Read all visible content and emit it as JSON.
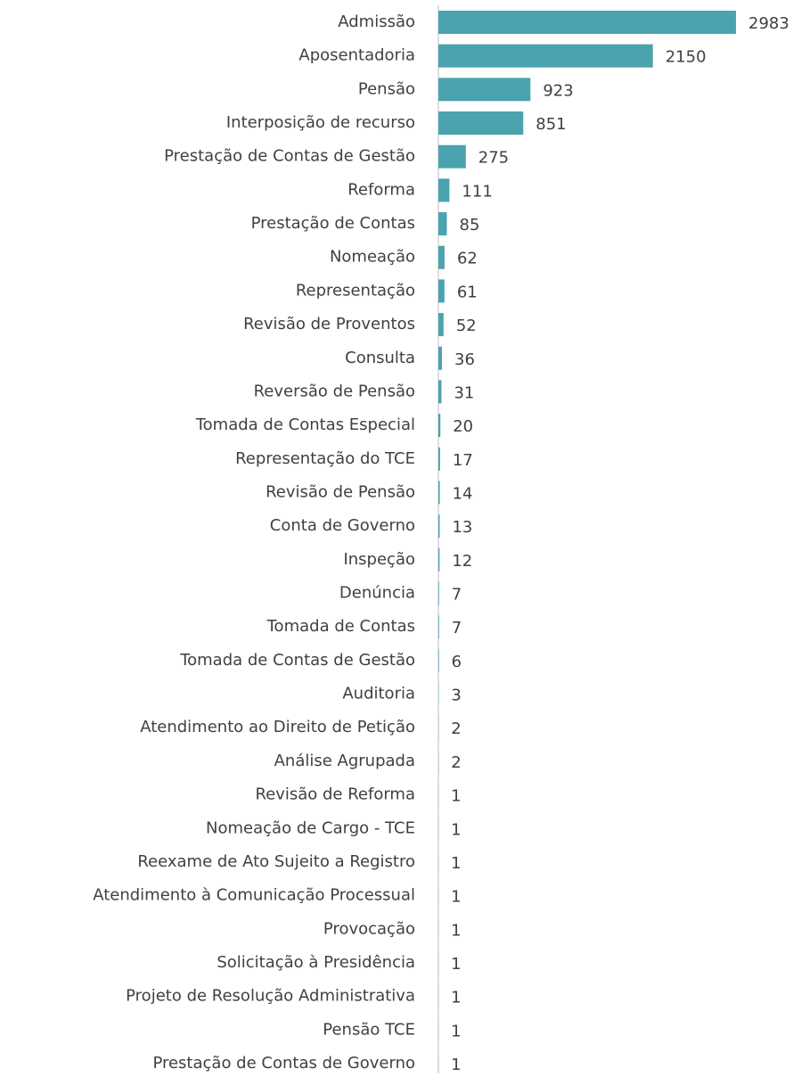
{
  "chart_data": {
    "type": "bar",
    "orientation": "horizontal",
    "color": "#4aa3ae",
    "categories": [
      "Admissão",
      "Aposentadoria",
      "Pensão",
      "Interposição de recurso",
      "Prestação de Contas de Gestão",
      "Reforma",
      "Prestação de Contas",
      "Nomeação",
      "Representação",
      "Revisão de Proventos",
      "Consulta",
      "Reversão de Pensão",
      "Tomada de Contas Especial",
      "Representação do TCE",
      "Revisão de Pensão",
      "Conta de Governo",
      "Inspeção",
      "Denúncia",
      "Tomada de Contas",
      "Tomada de Contas de Gestão",
      "Auditoria",
      "Atendimento ao Direito de Petição",
      "Análise Agrupada",
      "Revisão de Reforma",
      "Nomeação de Cargo - TCE",
      "Reexame de Ato Sujeito a Registro",
      "Atendimento à Comunicação Processual",
      "Provocação",
      "Solicitação à Presidência",
      "Projeto de Resolução Administrativa",
      "Pensão TCE",
      "Prestação de Contas de Governo"
    ],
    "values": [
      2983,
      2150,
      923,
      851,
      275,
      111,
      85,
      62,
      61,
      52,
      36,
      31,
      20,
      17,
      14,
      13,
      12,
      7,
      7,
      6,
      3,
      2,
      2,
      1,
      1,
      1,
      1,
      1,
      1,
      1,
      1,
      1
    ]
  }
}
